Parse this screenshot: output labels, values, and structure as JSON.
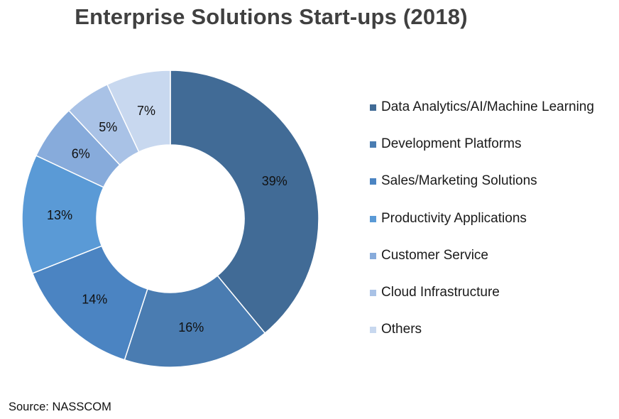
{
  "chart_data": {
    "type": "pie",
    "variant": "donut",
    "title": "Enterprise Solutions Start-ups (2018)",
    "legend_position": "right",
    "slices": [
      {
        "label": "Data Analytics/AI/Machine Learning",
        "value": 39,
        "display": "39%",
        "color": "#416b96"
      },
      {
        "label": "Development Platforms",
        "value": 16,
        "display": "16%",
        "color": "#4a7cb1"
      },
      {
        "label": "Sales/Marketing Solutions",
        "value": 14,
        "display": "14%",
        "color": "#4b84c2"
      },
      {
        "label": "Productivity Applications",
        "value": 13,
        "display": "13%",
        "color": "#5a9ad6"
      },
      {
        "label": "Customer Service",
        "value": 6,
        "display": "6%",
        "color": "#87abdb"
      },
      {
        "label": "Cloud Infrastructure",
        "value": 5,
        "display": "5%",
        "color": "#a9c2e6"
      },
      {
        "label": "Others",
        "value": 7,
        "display": "7%",
        "color": "#c8d8ef"
      }
    ]
  },
  "footer": {
    "source": "Source: NASSCOM"
  }
}
